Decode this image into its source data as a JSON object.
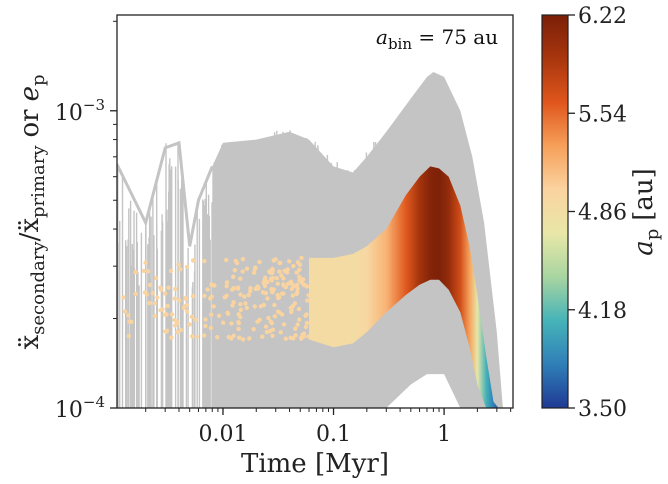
{
  "chart_data": {
    "type": "scatter",
    "title": "",
    "xlabel": "Time [Myr]",
    "ylabel_parts": [
      "ẍ",
      "secondary",
      "/",
      "ẍ",
      "primary",
      "or",
      "e",
      "p"
    ],
    "x_scale": "log",
    "y_scale": "log",
    "xlim": [
      0.0011,
      4.2
    ],
    "ylim": [
      0.0001,
      0.0021
    ],
    "x_ticks": [
      {
        "value": 0.01,
        "label": "0.01"
      },
      {
        "value": 0.1,
        "label": "0.1"
      },
      {
        "value": 1,
        "label": "1"
      }
    ],
    "y_ticks": [
      {
        "value": 0.0001,
        "label_base": "10",
        "label_exp": "−4"
      },
      {
        "value": 0.001,
        "label_base": "10",
        "label_exp": "−3"
      }
    ],
    "annotation": {
      "symbol": "a",
      "subscript": "bin",
      "text": " = 75 au"
    },
    "colorbar": {
      "label_symbol": "a",
      "label_sub": "p",
      "label_unit": "[au]",
      "min": 3.5,
      "max": 6.22,
      "ticks": [
        "6.22",
        "5.54",
        "4.86",
        "4.18",
        "3.50"
      ],
      "colors": [
        "#1f3a93",
        "#2f7fb8",
        "#46b3b8",
        "#a8d5a0",
        "#e8e7a8",
        "#fbd3a0",
        "#f6a05a",
        "#e0561c",
        "#a8360e",
        "#7a1f08"
      ]
    },
    "series": [
      {
        "name": "accel_ratio",
        "style": "gray band",
        "color": "#c4c4c4",
        "envelope": {
          "x": [
            0.0011,
            0.002,
            0.003,
            0.004,
            0.005,
            0.006,
            0.008,
            0.01,
            0.02,
            0.04,
            0.06,
            0.1,
            0.15,
            0.2,
            0.3,
            0.5,
            0.7,
            0.8,
            1.0,
            1.4,
            1.8,
            2.3,
            3.0,
            3.4
          ],
          "upper": [
            0.00066,
            0.00042,
            0.00075,
            0.00078,
            0.00035,
            0.0005,
            0.00065,
            0.00078,
            0.0008,
            0.00085,
            0.0008,
            0.00065,
            0.00062,
            0.0007,
            0.00085,
            0.0011,
            0.0013,
            0.00135,
            0.0013,
            0.001,
            0.0007,
            0.00042,
            0.00018,
            0.0001
          ],
          "lower": [
            0.0001,
            0.0001,
            0.0001,
            0.0001,
            0.0001,
            0.0001,
            0.0001,
            0.0001,
            0.0001,
            0.0001,
            0.0001,
            0.0001,
            0.0001,
            0.0001,
            0.0001,
            0.00012,
            0.00013,
            0.00013,
            0.00013,
            0.0001,
            0.0001,
            0.0001,
            0.0001,
            0.0001
          ]
        }
      },
      {
        "name": "eccentricity_early",
        "style": "scatter",
        "color_by": "a_p",
        "x_range": [
          0.0011,
          0.06
        ],
        "y_range": [
          0.00017,
          0.00032
        ],
        "a_p": 5.0
      },
      {
        "name": "eccentricity_band",
        "style": "colored band",
        "color_by": "a_p",
        "x": [
          0.06,
          0.1,
          0.15,
          0.2,
          0.3,
          0.45,
          0.6,
          0.75,
          0.9,
          1.1,
          1.4,
          1.7,
          2.0,
          2.4,
          2.8,
          3.1
        ],
        "upper": [
          0.00032,
          0.00032,
          0.00033,
          0.00035,
          0.0004,
          0.00052,
          0.0006,
          0.00065,
          0.00064,
          0.0006,
          0.00048,
          0.00035,
          0.00024,
          0.00015,
          0.000105,
          0.0001
        ],
        "lower": [
          0.00017,
          0.00016,
          0.000165,
          0.00018,
          0.00021,
          0.00024,
          0.00026,
          0.00027,
          0.00027,
          0.00025,
          0.00021,
          0.00016,
          0.00012,
          0.0001,
          0.0001,
          0.0001
        ],
        "a_p": [
          4.9,
          4.9,
          4.88,
          4.95,
          5.2,
          5.6,
          5.95,
          6.15,
          6.2,
          6.05,
          5.7,
          5.3,
          4.7,
          4.1,
          3.8,
          3.6
        ]
      }
    ]
  }
}
